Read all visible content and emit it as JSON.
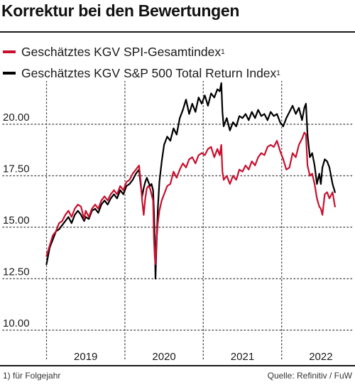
{
  "title": "Korrektur bei den Bewertungen",
  "colors": {
    "spi": "#c8102e",
    "sp500": "#000000"
  },
  "legend": [
    {
      "label": "Geschätztes KGV SPI-Gesamtindex",
      "sup": "1",
      "color": "#c8102e"
    },
    {
      "label": "Geschätztes KGV S&P 500 Total Return Index",
      "sup": "1",
      "color": "#000000"
    }
  ],
  "footnote": "1) für Folgejahr",
  "source": "Quelle: Refinitiv / FuW",
  "chart_data": {
    "type": "line",
    "title": "Korrektur bei den Bewertungen",
    "xlabel": "",
    "ylabel": "",
    "ylim": [
      10,
      22.5
    ],
    "yticks": [
      10,
      12.5,
      15,
      17.5,
      20
    ],
    "ytick_labels": [
      "10.00",
      "12.50",
      "15.00",
      "17.50",
      "20.00"
    ],
    "xlim": [
      2018.45,
      2022.3
    ],
    "xticks": [
      2019,
      2020,
      2021,
      2022
    ],
    "xtick_labels": [
      "2019",
      "2020",
      "2021",
      "2022"
    ],
    "x_tick_marks": [
      2018.5,
      2019.5,
      2020.5,
      2021.5
    ],
    "grid": "dotted",
    "legend_position": "top-left",
    "series": [
      {
        "name": "Geschätztes KGV SPI-Gesamtindex",
        "color": "#c8102e",
        "points": [
          [
            2018.5,
            13.6
          ],
          [
            2018.54,
            14.1
          ],
          [
            2018.58,
            14.6
          ],
          [
            2018.62,
            14.8
          ],
          [
            2018.66,
            15.2
          ],
          [
            2018.7,
            15.3
          ],
          [
            2018.74,
            15.6
          ],
          [
            2018.78,
            15.8
          ],
          [
            2018.82,
            15.5
          ],
          [
            2018.86,
            15.9
          ],
          [
            2018.9,
            16.1
          ],
          [
            2018.94,
            16.0
          ],
          [
            2018.98,
            15.4
          ],
          [
            2019.0,
            15.8
          ],
          [
            2019.04,
            15.5
          ],
          [
            2019.08,
            15.9
          ],
          [
            2019.12,
            16.1
          ],
          [
            2019.16,
            15.9
          ],
          [
            2019.2,
            16.3
          ],
          [
            2019.24,
            16.5
          ],
          [
            2019.28,
            16.3
          ],
          [
            2019.32,
            16.6
          ],
          [
            2019.36,
            16.8
          ],
          [
            2019.4,
            16.6
          ],
          [
            2019.44,
            17.0
          ],
          [
            2019.48,
            16.8
          ],
          [
            2019.52,
            17.2
          ],
          [
            2019.56,
            17.3
          ],
          [
            2019.6,
            17.6
          ],
          [
            2019.64,
            17.8
          ],
          [
            2019.68,
            18.0
          ],
          [
            2019.7,
            17.3
          ],
          [
            2019.72,
            16.3
          ],
          [
            2019.74,
            15.6
          ],
          [
            2019.76,
            16.4
          ],
          [
            2019.78,
            16.9
          ],
          [
            2019.8,
            17.0
          ],
          [
            2019.82,
            16.9
          ],
          [
            2019.84,
            16.6
          ],
          [
            2019.86,
            16.3
          ],
          [
            2019.87,
            14.5
          ],
          [
            2019.88,
            13.6
          ],
          [
            2019.89,
            13.2
          ],
          [
            2019.9,
            14.2
          ],
          [
            2019.92,
            15.2
          ],
          [
            2019.94,
            15.8
          ],
          [
            2019.97,
            16.3
          ],
          [
            2020.0,
            16.6
          ],
          [
            2020.04,
            17.0
          ],
          [
            2020.08,
            17.1
          ],
          [
            2020.12,
            17.7
          ],
          [
            2020.16,
            17.4
          ],
          [
            2020.2,
            17.8
          ],
          [
            2020.24,
            18.1
          ],
          [
            2020.28,
            17.9
          ],
          [
            2020.32,
            18.3
          ],
          [
            2020.36,
            18.4
          ],
          [
            2020.4,
            18.1
          ],
          [
            2020.44,
            18.5
          ],
          [
            2020.48,
            18.6
          ],
          [
            2020.52,
            18.5
          ],
          [
            2020.56,
            18.8
          ],
          [
            2020.6,
            18.9
          ],
          [
            2020.64,
            18.4
          ],
          [
            2020.68,
            18.8
          ],
          [
            2020.71,
            18.5
          ],
          [
            2020.73,
            19.0
          ],
          [
            2020.745,
            17.7
          ],
          [
            2020.76,
            17.3
          ],
          [
            2020.8,
            17.5
          ],
          [
            2020.84,
            17.1
          ],
          [
            2020.88,
            17.5
          ],
          [
            2020.92,
            17.3
          ],
          [
            2020.96,
            17.8
          ],
          [
            2021.0,
            17.7
          ],
          [
            2021.04,
            18.0
          ],
          [
            2021.08,
            17.8
          ],
          [
            2021.12,
            18.2
          ],
          [
            2021.16,
            18.0
          ],
          [
            2021.2,
            18.4
          ],
          [
            2021.24,
            18.6
          ],
          [
            2021.28,
            18.5
          ],
          [
            2021.32,
            18.9
          ],
          [
            2021.36,
            19.0
          ],
          [
            2021.4,
            18.9
          ],
          [
            2021.44,
            19.2
          ],
          [
            2021.48,
            18.7
          ],
          [
            2021.52,
            18.3
          ],
          [
            2021.56,
            17.8
          ],
          [
            2021.6,
            17.9
          ],
          [
            2021.64,
            18.6
          ],
          [
            2021.68,
            18.4
          ],
          [
            2021.72,
            19.0
          ],
          [
            2021.76,
            19.3
          ],
          [
            2021.79,
            19.6
          ],
          [
            2021.81,
            19.5
          ],
          [
            2021.83,
            18.0
          ],
          [
            2021.86,
            17.5
          ],
          [
            2021.89,
            17.6
          ],
          [
            2021.92,
            17.1
          ],
          [
            2021.95,
            16.4
          ],
          [
            2021.98,
            16.0
          ],
          [
            2022.0,
            15.9
          ],
          [
            2022.02,
            15.6
          ],
          [
            2022.05,
            16.6
          ],
          [
            2022.08,
            16.7
          ],
          [
            2022.11,
            16.4
          ],
          [
            2022.15,
            16.7
          ],
          [
            2022.18,
            16.0
          ]
        ]
      },
      {
        "name": "Geschätztes KGV S&P 500 Total Return Index",
        "color": "#000000",
        "points": [
          [
            2018.5,
            13.2
          ],
          [
            2018.54,
            14.0
          ],
          [
            2018.58,
            14.4
          ],
          [
            2018.62,
            14.8
          ],
          [
            2018.66,
            14.9
          ],
          [
            2018.7,
            15.1
          ],
          [
            2018.74,
            15.3
          ],
          [
            2018.78,
            15.5
          ],
          [
            2018.82,
            15.2
          ],
          [
            2018.86,
            15.6
          ],
          [
            2018.9,
            15.8
          ],
          [
            2018.94,
            15.6
          ],
          [
            2018.98,
            15.3
          ],
          [
            2019.0,
            15.5
          ],
          [
            2019.04,
            15.4
          ],
          [
            2019.08,
            15.8
          ],
          [
            2019.12,
            15.9
          ],
          [
            2019.16,
            15.7
          ],
          [
            2019.2,
            16.1
          ],
          [
            2019.24,
            16.3
          ],
          [
            2019.28,
            16.1
          ],
          [
            2019.32,
            16.4
          ],
          [
            2019.36,
            16.6
          ],
          [
            2019.4,
            16.4
          ],
          [
            2019.44,
            16.8
          ],
          [
            2019.48,
            16.6
          ],
          [
            2019.52,
            17.0
          ],
          [
            2019.56,
            17.1
          ],
          [
            2019.6,
            17.3
          ],
          [
            2019.64,
            17.6
          ],
          [
            2019.68,
            17.8
          ],
          [
            2019.7,
            17.1
          ],
          [
            2019.72,
            16.5
          ],
          [
            2019.74,
            16.9
          ],
          [
            2019.76,
            17.2
          ],
          [
            2019.78,
            17.4
          ],
          [
            2019.8,
            17.2
          ],
          [
            2019.82,
            17.0
          ],
          [
            2019.84,
            17.1
          ],
          [
            2019.86,
            16.8
          ],
          [
            2019.87,
            15.8
          ],
          [
            2019.88,
            14.6
          ],
          [
            2019.89,
            12.5
          ],
          [
            2019.9,
            13.8
          ],
          [
            2019.92,
            15.9
          ],
          [
            2019.94,
            17.2
          ],
          [
            2019.97,
            18.2
          ],
          [
            2020.0,
            19.0
          ],
          [
            2020.04,
            19.4
          ],
          [
            2020.08,
            19.2
          ],
          [
            2020.12,
            19.8
          ],
          [
            2020.16,
            19.5
          ],
          [
            2020.2,
            20.3
          ],
          [
            2020.24,
            20.7
          ],
          [
            2020.28,
            21.2
          ],
          [
            2020.32,
            20.5
          ],
          [
            2020.36,
            21.0
          ],
          [
            2020.4,
            20.6
          ],
          [
            2020.44,
            21.3
          ],
          [
            2020.48,
            21.0
          ],
          [
            2020.52,
            21.4
          ],
          [
            2020.56,
            20.9
          ],
          [
            2020.6,
            21.5
          ],
          [
            2020.64,
            21.3
          ],
          [
            2020.68,
            21.7
          ],
          [
            2020.71,
            21.6
          ],
          [
            2020.73,
            22.0
          ],
          [
            2020.745,
            20.6
          ],
          [
            2020.76,
            19.9
          ],
          [
            2020.8,
            20.3
          ],
          [
            2020.84,
            19.7
          ],
          [
            2020.88,
            20.1
          ],
          [
            2020.92,
            19.9
          ],
          [
            2020.96,
            20.4
          ],
          [
            2021.0,
            20.3
          ],
          [
            2021.04,
            20.5
          ],
          [
            2021.08,
            20.2
          ],
          [
            2021.12,
            20.6
          ],
          [
            2021.16,
            20.3
          ],
          [
            2021.2,
            20.7
          ],
          [
            2021.24,
            20.4
          ],
          [
            2021.28,
            20.5
          ],
          [
            2021.32,
            20.2
          ],
          [
            2021.36,
            20.6
          ],
          [
            2021.4,
            20.4
          ],
          [
            2021.44,
            20.5
          ],
          [
            2021.48,
            20.1
          ],
          [
            2021.52,
            19.9
          ],
          [
            2021.56,
            20.3
          ],
          [
            2021.6,
            20.6
          ],
          [
            2021.64,
            20.9
          ],
          [
            2021.68,
            20.5
          ],
          [
            2021.72,
            20.8
          ],
          [
            2021.76,
            20.2
          ],
          [
            2021.79,
            20.8
          ],
          [
            2021.81,
            21.0
          ],
          [
            2021.83,
            19.5
          ],
          [
            2021.86,
            18.4
          ],
          [
            2021.89,
            18.6
          ],
          [
            2021.92,
            18.0
          ],
          [
            2021.95,
            17.1
          ],
          [
            2021.98,
            17.6
          ],
          [
            2022.0,
            17.1
          ],
          [
            2022.02,
            17.9
          ],
          [
            2022.05,
            18.3
          ],
          [
            2022.08,
            18.2
          ],
          [
            2022.11,
            17.9
          ],
          [
            2022.15,
            17.1
          ],
          [
            2022.18,
            16.7
          ]
        ]
      }
    ]
  }
}
